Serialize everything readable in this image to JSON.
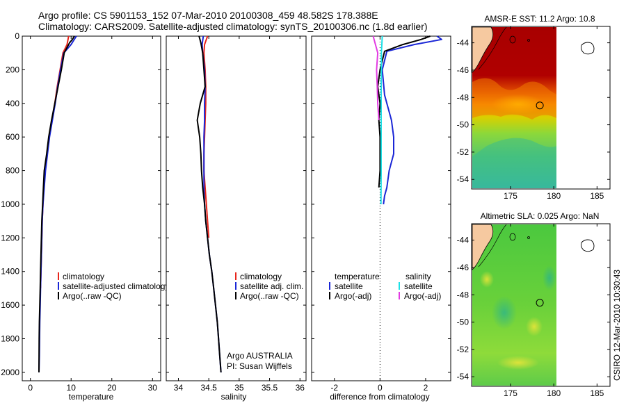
{
  "figure": {
    "title_line1": "Argo profile: CS 5901153_152 07-Mar-2010 20100308_459 48.582S 178.388E",
    "title_line2": "Climatology: CARS2009. Satellite-adjusted climatology: synTS_20100306.nc (1.8d earlier)",
    "float_info_line1": "Argo AUSTRALIA",
    "float_info_line2": "PI: Susan Wijffels",
    "footer": "CSIRO 12-Mar-2010 10:30:43"
  },
  "colors": {
    "climatology": "#e8251b",
    "satellite": "#1a26d6",
    "argo": "#000000",
    "salinity_satellite": "#1de0e6",
    "salinity_argo": "#e23be2",
    "sst_hot": "#b00000",
    "sst_orange": "#ff8a00",
    "sst_yellow": "#e8d400",
    "sla_green": "#5ccd3a",
    "land": "#f6c9a0"
  },
  "chart_data": [
    {
      "id": "temperature",
      "type": "line",
      "xlabel": "temperature",
      "ylabel": "",
      "xlim": [
        -2,
        32
      ],
      "ylim": [
        2050,
        0
      ],
      "xticks": [
        "0",
        "10",
        "20",
        "30"
      ],
      "xtick_values": [
        0,
        10,
        20,
        30
      ],
      "yticks": [
        "0",
        "200",
        "400",
        "600",
        "800",
        "1000",
        "1200",
        "1400",
        "1600",
        "1800",
        "2000"
      ],
      "ytick_values": [
        0,
        200,
        400,
        600,
        800,
        1000,
        1200,
        1400,
        1600,
        1800,
        2000
      ],
      "legend": [
        "climatology",
        "satellite-adjusted climatology",
        "Argo(..raw -QC)"
      ],
      "series": [
        {
          "name": "climatology",
          "color": "red",
          "x": [
            9.4,
            9.0,
            8.0,
            7.3,
            6.6,
            6.0,
            5.3,
            4.6,
            4.1,
            3.6,
            3.3,
            3.1,
            2.9,
            2.8,
            2.7,
            2.6,
            2.5
          ],
          "y": [
            0,
            50,
            100,
            200,
            300,
            400,
            500,
            600,
            700,
            800,
            900,
            1000,
            1100,
            1200,
            1300,
            1400,
            1500
          ]
        },
        {
          "name": "satellite-adjusted climatology",
          "color": "blue",
          "x": [
            11.3,
            10.0,
            8.2,
            7.4,
            6.7,
            6.1,
            5.4,
            4.7,
            4.2,
            3.7,
            3.4,
            3.1,
            2.9,
            2.8,
            2.7,
            2.6,
            2.5,
            2.4,
            2.3,
            2.25,
            2.2,
            2.15,
            2.1
          ],
          "y": [
            0,
            50,
            100,
            200,
            300,
            400,
            500,
            600,
            700,
            800,
            900,
            1000,
            1100,
            1200,
            1300,
            1400,
            1500,
            1600,
            1700,
            1800,
            1900,
            1950,
            2000
          ]
        },
        {
          "name": "Argo(..raw -QC)",
          "color": "black",
          "x": [
            10.8,
            10.3,
            9.6,
            8.3,
            7.6,
            6.8,
            6.0,
            5.2,
            4.5,
            4.0,
            3.4,
            3.2,
            3.0,
            2.8,
            2.7,
            2.6,
            2.5,
            2.4,
            2.3,
            2.2,
            2.15,
            2.1
          ],
          "y": [
            0,
            20,
            40,
            100,
            200,
            300,
            400,
            500,
            600,
            700,
            800,
            900,
            1000,
            1100,
            1200,
            1300,
            1400,
            1500,
            1600,
            1700,
            1800,
            2000
          ]
        }
      ]
    },
    {
      "id": "salinity",
      "type": "line",
      "xlabel": "salinity",
      "ylabel": "",
      "xlim": [
        33.8,
        36.1
      ],
      "ylim": [
        2050,
        0
      ],
      "xticks": [
        "34",
        "34.5",
        "35",
        "35.5",
        "36"
      ],
      "xtick_values": [
        34,
        34.5,
        35,
        35.5,
        36
      ],
      "legend": [
        "climatology",
        "satellite adj. clim.",
        "Argo(..raw -QC)"
      ],
      "series": [
        {
          "name": "climatology",
          "color": "red",
          "x": [
            34.48,
            34.43,
            34.42,
            34.44,
            34.45,
            34.45,
            34.44,
            34.43,
            34.42,
            34.42,
            34.44,
            34.46,
            34.48,
            34.5
          ],
          "y": [
            0,
            50,
            100,
            200,
            300,
            400,
            500,
            600,
            700,
            800,
            900,
            1000,
            1100,
            1200
          ]
        },
        {
          "name": "satellite adj. clim.",
          "color": "blue",
          "x": [
            34.41,
            34.39,
            34.4,
            34.43,
            34.44,
            34.43,
            34.43,
            34.42,
            34.42,
            34.42,
            34.42,
            34.43,
            34.45,
            34.48,
            34.51,
            34.55,
            34.58,
            34.61,
            34.64,
            34.66,
            34.68,
            34.7
          ],
          "y": [
            0,
            50,
            100,
            200,
            300,
            400,
            500,
            600,
            700,
            800,
            900,
            1000,
            1100,
            1200,
            1300,
            1400,
            1500,
            1600,
            1700,
            1800,
            1900,
            2000
          ]
        },
        {
          "name": "Argo(..raw -QC)",
          "color": "black",
          "x": [
            34.34,
            34.37,
            34.4,
            34.42,
            34.44,
            34.36,
            34.31,
            34.35,
            34.37,
            34.38,
            34.4,
            34.43,
            34.45,
            34.48,
            34.51,
            34.55,
            34.58,
            34.61,
            34.64,
            34.66,
            34.68,
            34.7
          ],
          "y": [
            0,
            40,
            100,
            200,
            300,
            400,
            500,
            600,
            700,
            800,
            900,
            1000,
            1100,
            1200,
            1300,
            1400,
            1500,
            1600,
            1700,
            1800,
            1900,
            2000
          ]
        }
      ]
    },
    {
      "id": "difference",
      "type": "line",
      "xlabel": "difference from climatology",
      "ylabel": "",
      "xlim": [
        -3,
        3.1
      ],
      "ylim": [
        2050,
        0
      ],
      "xticks": [
        "-2",
        "0",
        "2"
      ],
      "xtick_values": [
        -2,
        0,
        2
      ],
      "legend_headers": [
        "temperature",
        "salinity"
      ],
      "legend": [
        "satellite",
        "Argo(-adj)",
        "satellite",
        "Argo(-adj)"
      ],
      "series": [
        {
          "name": "satellite",
          "group": "temperature",
          "color": "blue",
          "x": [
            2.5,
            2.7,
            1.5,
            0.3,
            0.1,
            0.2,
            0.5,
            0.6,
            0.6,
            0.4,
            0.3,
            0.2,
            0.15
          ],
          "y": [
            0,
            20,
            50,
            90,
            200,
            350,
            500,
            600,
            700,
            800,
            900,
            950,
            1000
          ]
        },
        {
          "name": "Argo(-adj)",
          "group": "temperature",
          "color": "black",
          "x": [
            2.2,
            1.8,
            1.0,
            0.2,
            0.0,
            -0.1,
            0.0,
            -0.05,
            0.0,
            0.0,
            0.0,
            -0.05
          ],
          "y": [
            0,
            20,
            50,
            90,
            200,
            300,
            400,
            500,
            600,
            700,
            800,
            900
          ]
        },
        {
          "name": "satellite",
          "group": "salinity",
          "color": "cyan",
          "x": [
            0.1,
            0.08,
            0.06,
            0.06,
            0.05,
            0.05,
            0.05,
            0.05,
            0.05,
            0.05,
            0.04
          ],
          "y": [
            0,
            50,
            100,
            200,
            300,
            400,
            500,
            600,
            700,
            800,
            1000
          ]
        },
        {
          "name": "Argo(-adj)",
          "group": "salinity",
          "color": "magenta",
          "x": [
            -0.3,
            -0.2,
            -0.1,
            -0.15,
            -0.12,
            -0.1,
            -0.05
          ],
          "y": [
            0,
            50,
            100,
            200,
            300,
            400,
            500
          ]
        }
      ]
    },
    {
      "id": "sst-map",
      "type": "heatmap",
      "title": "AMSR-E SST: 11.2 Argo: 10.8",
      "xlim": [
        170.5,
        186.5
      ],
      "ylim": [
        -54.7,
        -42.8
      ],
      "xticks": [
        "175",
        "180",
        "185"
      ],
      "xtick_values": [
        175,
        180,
        185
      ],
      "yticks": [
        "-44",
        "-46",
        "-48",
        "-50",
        "-52",
        "-54"
      ],
      "ytick_values": [
        -44,
        -46,
        -48,
        -50,
        -52,
        -54
      ],
      "data_extent": [
        170.5,
        180.2,
        -54.7,
        -42.8
      ],
      "profile_location": [
        178.388,
        -48.582
      ]
    },
    {
      "id": "sla-map",
      "type": "heatmap",
      "title": "Altimetric SLA: 0.025 Argo: NaN",
      "xlim": [
        170.5,
        186.5
      ],
      "ylim": [
        -54.7,
        -42.8
      ],
      "xticks": [
        "175",
        "180",
        "185"
      ],
      "xtick_values": [
        175,
        180,
        185
      ],
      "yticks": [
        "-44",
        "-46",
        "-48",
        "-50",
        "-52",
        "-54"
      ],
      "ytick_values": [
        -44,
        -46,
        -48,
        -50,
        -52,
        -54
      ],
      "data_extent": [
        170.5,
        180.2,
        -54.7,
        -42.8
      ],
      "profile_location": [
        178.388,
        -48.582
      ]
    }
  ]
}
